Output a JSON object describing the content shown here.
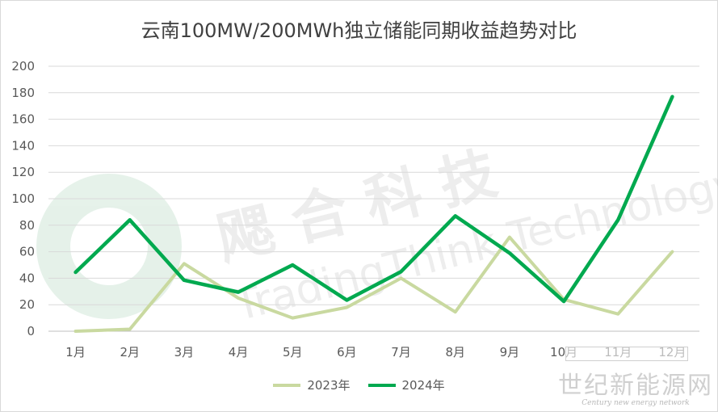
{
  "chart_data": {
    "type": "line",
    "title": "云南100MW/200MWh独立储能同期收益趋势对比",
    "categories": [
      "1月",
      "2月",
      "3月",
      "4月",
      "5月",
      "6月",
      "7月",
      "8月",
      "9月",
      "10月",
      "11月",
      "12月"
    ],
    "series": [
      {
        "name": "2023年",
        "color": "#c9d9a0",
        "values": [
          0,
          1.5,
          51,
          25,
          10,
          18,
          40,
          14.5,
          71,
          24,
          13,
          60
        ]
      },
      {
        "name": "2024年",
        "color": "#00a94f",
        "values": [
          44.5,
          84,
          38.5,
          29.5,
          50,
          23.5,
          45,
          87,
          59,
          22.5,
          84,
          177
        ]
      }
    ],
    "ylim": [
      0,
      200
    ],
    "yticks": [
      "0",
      "20",
      "40",
      "60",
      "80",
      "100",
      "120",
      "140",
      "160",
      "180",
      "200"
    ],
    "grid": true,
    "legend": "bottom"
  },
  "watermark": {
    "cn": "飔 合 科 技",
    "en": "TradingThink Technology"
  },
  "footer": {
    "brand": "世纪新能源网",
    "tagline": "Century new energy network"
  }
}
